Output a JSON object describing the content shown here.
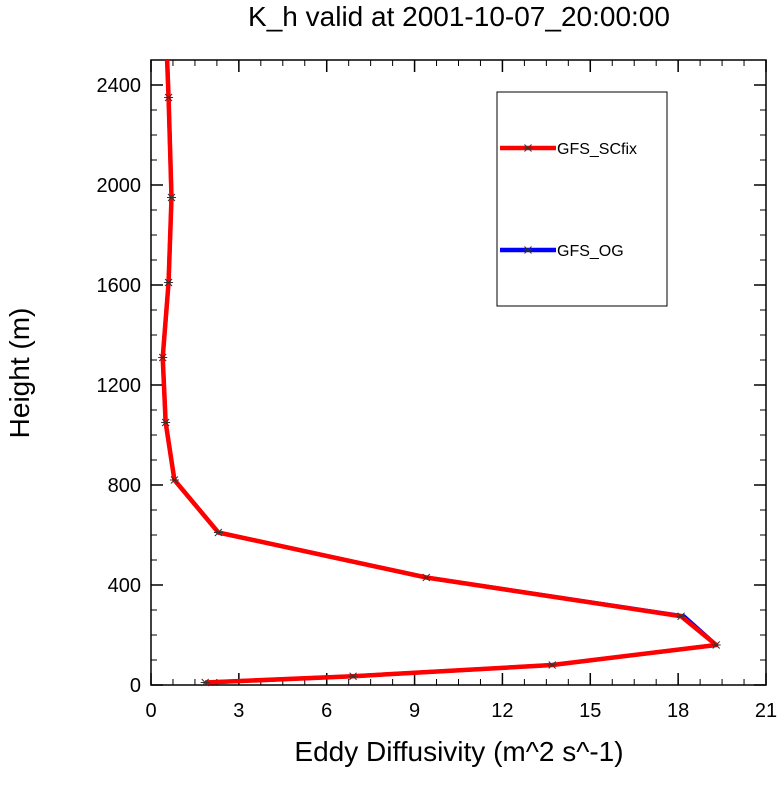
{
  "chart_data": {
    "type": "line",
    "title": "K_h valid at 2001-10-07_20:00:00",
    "xlabel": "Eddy Diffusivity (m^2 s^-1)",
    "ylabel": "Height (m)",
    "xlim": [
      0,
      21
    ],
    "ylim": [
      0,
      2500
    ],
    "xticks": [
      0,
      3,
      6,
      9,
      12,
      15,
      18,
      21
    ],
    "yticks": [
      0,
      400,
      800,
      1200,
      1600,
      2000,
      2400
    ],
    "x_minor_step": 0.75,
    "y_minor_step": 100,
    "grid": false,
    "legend_position": "top-right",
    "series": [
      {
        "name": "GFS_OG",
        "color": "#0000ff",
        "points": [
          [
            1.85,
            10
          ],
          [
            6.9,
            35
          ],
          [
            13.7,
            80
          ],
          [
            19.3,
            160
          ],
          [
            18.2,
            275
          ],
          [
            9.4,
            430
          ],
          [
            2.3,
            610
          ],
          [
            0.8,
            820
          ],
          [
            0.5,
            1050
          ],
          [
            0.4,
            1310
          ],
          [
            0.6,
            1610
          ],
          [
            0.7,
            1950
          ],
          [
            0.6,
            2350
          ],
          [
            0.55,
            2500
          ]
        ]
      },
      {
        "name": "GFS_SCfix",
        "color": "#ff0000",
        "points": [
          [
            1.85,
            10
          ],
          [
            6.9,
            35
          ],
          [
            13.7,
            80
          ],
          [
            19.3,
            160
          ],
          [
            18.1,
            275
          ],
          [
            9.4,
            430
          ],
          [
            2.3,
            610
          ],
          [
            0.8,
            820
          ],
          [
            0.5,
            1050
          ],
          [
            0.4,
            1310
          ],
          [
            0.6,
            1610
          ],
          [
            0.7,
            1950
          ],
          [
            0.6,
            2350
          ],
          [
            0.55,
            2500
          ]
        ]
      }
    ],
    "legend_order": [
      "GFS_SCfix",
      "GFS_OG"
    ]
  }
}
